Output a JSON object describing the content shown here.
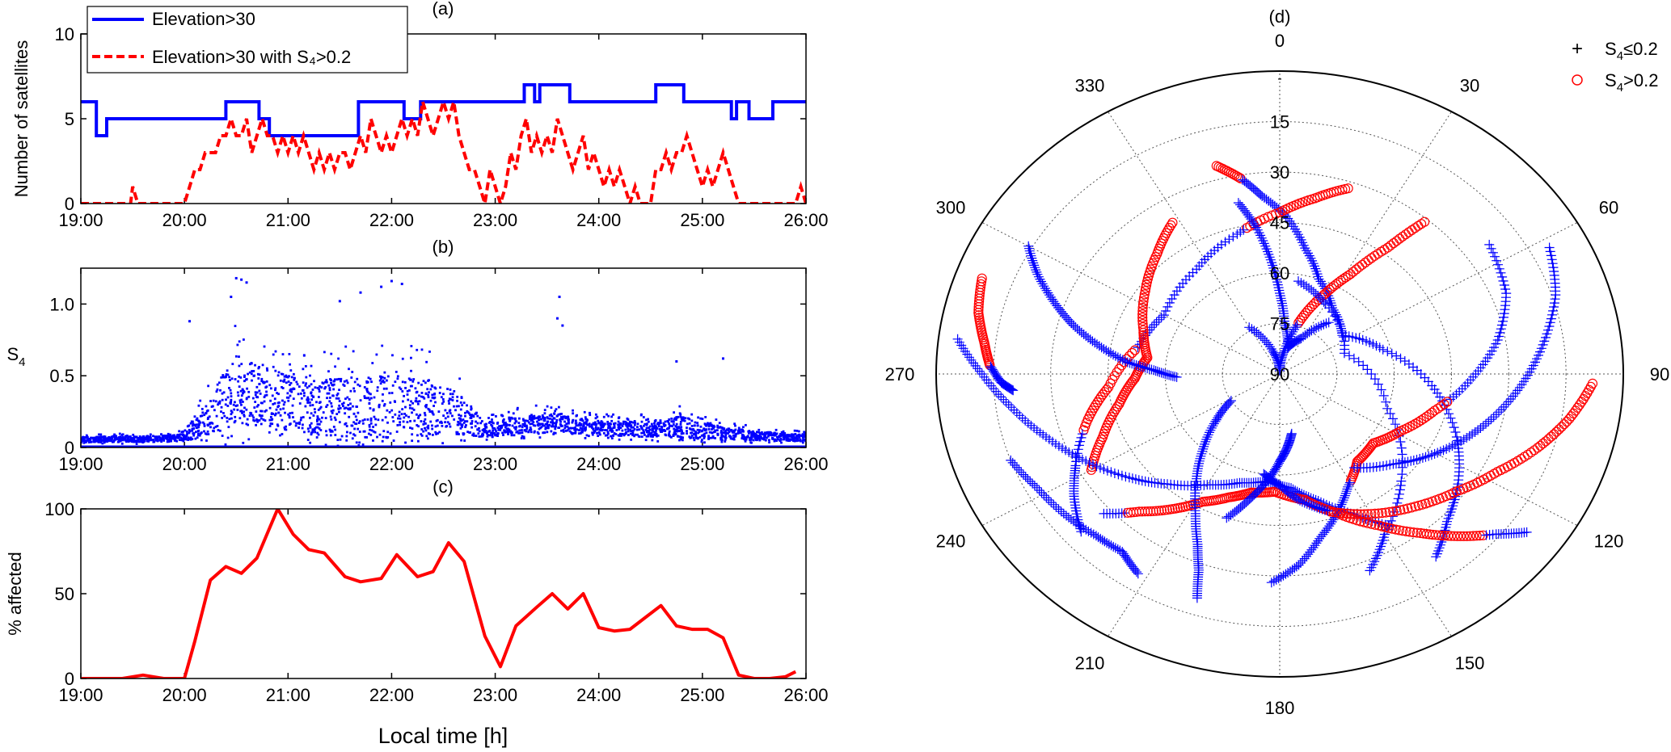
{
  "chart_data": [
    {
      "panel": "a",
      "type": "line",
      "panel_label": "(a)",
      "ylabel": "Number of satellites",
      "ylim": [
        0,
        10
      ],
      "yticks": [
        0,
        5,
        10
      ],
      "xlim": [
        19,
        26
      ],
      "xtick_labels": [
        "19:00",
        "20:00",
        "21:00",
        "22:00",
        "23:00",
        "24:00",
        "25:00",
        "26:00"
      ],
      "legend_position": "top-left",
      "series": [
        {
          "name": "Elevation>30",
          "color": "#0000ff",
          "style": "solid",
          "x": [
            19.0,
            19.15,
            19.15,
            19.25,
            19.25,
            20.4,
            20.4,
            20.72,
            20.72,
            20.82,
            20.82,
            21.68,
            21.68,
            22.12,
            22.12,
            22.28,
            22.28,
            23.28,
            23.28,
            23.38,
            23.38,
            23.43,
            23.43,
            23.72,
            23.72,
            24.55,
            24.55,
            24.82,
            24.82,
            25.28,
            25.28,
            25.33,
            25.33,
            25.45,
            25.45,
            25.68,
            25.68,
            26.0
          ],
          "y": [
            6,
            6,
            4,
            4,
            5,
            5,
            6,
            6,
            5,
            5,
            4,
            4,
            6,
            6,
            5,
            5,
            6,
            6,
            7,
            7,
            6,
            6,
            7,
            7,
            6,
            6,
            7,
            7,
            6,
            6,
            5,
            5,
            6,
            6,
            5,
            5,
            6,
            6
          ]
        },
        {
          "name": "Elevation>30 with S₄>0.2",
          "color": "#ff0000",
          "style": "dashed",
          "x": [
            19.0,
            19.48,
            19.5,
            19.55,
            19.6,
            20.0,
            20.05,
            20.1,
            20.15,
            20.2,
            20.25,
            20.3,
            20.35,
            20.4,
            20.45,
            20.5,
            20.55,
            20.6,
            20.65,
            20.7,
            20.75,
            20.8,
            20.85,
            20.9,
            20.95,
            21.0,
            21.05,
            21.1,
            21.15,
            21.2,
            21.25,
            21.3,
            21.35,
            21.4,
            21.45,
            21.5,
            21.55,
            21.6,
            21.65,
            21.7,
            21.75,
            21.8,
            21.85,
            21.9,
            21.95,
            22.0,
            22.05,
            22.1,
            22.15,
            22.2,
            22.25,
            22.3,
            22.35,
            22.4,
            22.45,
            22.5,
            22.55,
            22.6,
            22.65,
            22.7,
            22.75,
            22.8,
            22.85,
            22.9,
            22.95,
            23.0,
            23.05,
            23.1,
            23.15,
            23.2,
            23.25,
            23.3,
            23.35,
            23.4,
            23.45,
            23.5,
            23.55,
            23.6,
            23.65,
            23.7,
            23.75,
            23.8,
            23.85,
            23.9,
            23.95,
            24.0,
            24.05,
            24.1,
            24.15,
            24.2,
            24.25,
            24.3,
            24.35,
            24.4,
            24.45,
            24.5,
            24.55,
            24.6,
            24.65,
            24.7,
            24.75,
            24.8,
            24.85,
            24.9,
            24.95,
            25.0,
            25.05,
            25.1,
            25.15,
            25.2,
            25.25,
            25.3,
            25.35,
            25.9,
            25.95,
            26.0
          ],
          "y": [
            0,
            0,
            1,
            0,
            0,
            0,
            1,
            2,
            2,
            3,
            3,
            3,
            4,
            4,
            5,
            4,
            4,
            5,
            3,
            4,
            5,
            4,
            4,
            3,
            4,
            3,
            4,
            3,
            4,
            3,
            2,
            3,
            2,
            3,
            2,
            3,
            3,
            2,
            3,
            4,
            3,
            5,
            4,
            3,
            4,
            3,
            4,
            5,
            4,
            5,
            4,
            6,
            5,
            4,
            5,
            6,
            5,
            6,
            4,
            3,
            2,
            2,
            1,
            0,
            2,
            1,
            0,
            1,
            3,
            2,
            4,
            5,
            3,
            4,
            3,
            4,
            3,
            5,
            4,
            3,
            2,
            3,
            4,
            2,
            3,
            2,
            1,
            2,
            1,
            2,
            1,
            0,
            1,
            0,
            0,
            0,
            2,
            2,
            3,
            2,
            3,
            3,
            4,
            3,
            2,
            1,
            2,
            1,
            2,
            3,
            2,
            1,
            0,
            0,
            1,
            0
          ]
        }
      ]
    },
    {
      "panel": "b",
      "type": "scatter",
      "panel_label": "(b)",
      "ylabel_main": "S",
      "ylabel_sub": "4",
      "ylim": [
        0,
        1.25
      ],
      "yticks": [
        0,
        0.5,
        1.0
      ],
      "ytick_labels": [
        "0",
        "0.5",
        "1.0"
      ],
      "xlim": [
        19,
        26
      ],
      "xtick_labels": [
        "19:00",
        "20:00",
        "21:00",
        "22:00",
        "23:00",
        "24:00",
        "25:00",
        "26:00"
      ],
      "color": "#0000ff",
      "envelope": {
        "x": [
          19.0,
          19.5,
          20.0,
          20.1,
          20.3,
          20.5,
          20.7,
          21.0,
          21.3,
          21.6,
          22.0,
          22.3,
          22.6,
          22.8,
          22.9,
          23.2,
          23.5,
          23.6,
          23.7,
          24.0,
          24.5,
          24.8,
          25.0,
          25.3,
          25.6,
          26.0
        ],
        "center": [
          0.05,
          0.05,
          0.06,
          0.1,
          0.22,
          0.32,
          0.3,
          0.25,
          0.22,
          0.22,
          0.22,
          0.22,
          0.2,
          0.14,
          0.1,
          0.14,
          0.15,
          0.17,
          0.14,
          0.12,
          0.11,
          0.12,
          0.1,
          0.08,
          0.07,
          0.06
        ],
        "spread": [
          0.04,
          0.04,
          0.05,
          0.12,
          0.32,
          0.5,
          0.45,
          0.4,
          0.38,
          0.42,
          0.45,
          0.42,
          0.3,
          0.2,
          0.1,
          0.12,
          0.14,
          0.12,
          0.12,
          0.1,
          0.11,
          0.15,
          0.12,
          0.08,
          0.06,
          0.05
        ]
      },
      "outliers": [
        [
          20.5,
          1.18
        ],
        [
          20.55,
          1.17
        ],
        [
          22.0,
          1.16
        ],
        [
          21.9,
          1.12
        ],
        [
          22.1,
          1.14
        ],
        [
          23.62,
          1.05
        ],
        [
          21.7,
          1.08
        ],
        [
          21.5,
          1.02
        ],
        [
          20.45,
          1.05
        ],
        [
          20.6,
          1.15
        ],
        [
          23.65,
          0.85
        ],
        [
          24.75,
          0.6
        ],
        [
          25.2,
          0.62
        ],
        [
          20.05,
          0.88
        ],
        [
          23.6,
          0.9
        ]
      ]
    },
    {
      "panel": "c",
      "type": "line",
      "panel_label": "(c)",
      "ylabel": "% affected",
      "xlabel": "Local time [h]",
      "ylim": [
        0,
        100
      ],
      "yticks": [
        0,
        50,
        100
      ],
      "xlim": [
        19,
        26
      ],
      "xtick_labels": [
        "19:00",
        "20:00",
        "21:00",
        "22:00",
        "23:00",
        "24:00",
        "25:00",
        "26:00"
      ],
      "series": [
        {
          "color": "#ff0000",
          "x": [
            19.0,
            19.2,
            19.4,
            19.6,
            19.8,
            20.0,
            20.1,
            20.25,
            20.4,
            20.55,
            20.7,
            20.9,
            21.05,
            21.2,
            21.35,
            21.55,
            21.7,
            21.9,
            22.05,
            22.25,
            22.4,
            22.55,
            22.7,
            22.9,
            23.05,
            23.2,
            23.4,
            23.55,
            23.7,
            23.85,
            24.0,
            24.15,
            24.3,
            24.45,
            24.6,
            24.75,
            24.9,
            25.05,
            25.2,
            25.35,
            25.5,
            25.65,
            25.8,
            25.9
          ],
          "y": [
            0,
            0,
            0,
            2,
            0,
            0,
            22,
            58,
            66,
            62,
            71,
            100,
            85,
            76,
            74,
            60,
            57,
            59,
            73,
            60,
            63,
            80,
            69,
            25,
            7,
            31,
            42,
            50,
            41,
            50,
            30,
            28,
            29,
            36,
            43,
            31,
            29,
            29,
            24,
            2,
            0,
            0,
            1,
            4
          ]
        }
      ]
    },
    {
      "panel": "d",
      "type": "scatter",
      "subtype": "polar (azimuth / elevation skyplot)",
      "panel_label": "(d)",
      "angle_tick_labels": [
        "0",
        "30",
        "60",
        "90",
        "120",
        "150",
        "180",
        "210",
        "240",
        "270",
        "300",
        "330"
      ],
      "radial_tick_labels": [
        "15",
        "30",
        "45",
        "60",
        "75",
        "90"
      ],
      "radial_offset_label": "-",
      "legend_position": "top-right",
      "legend": [
        {
          "label_main": "S",
          "label_sub": "4",
          "label_rest": "≤0.2",
          "marker": "+",
          "color": "#0000ff"
        },
        {
          "label_main": "S",
          "label_sub": "4",
          "label_rest": ">0.2",
          "marker": "o",
          "color": "#ff0000"
        }
      ],
      "tracks": [
        {
          "az": [
            345,
            350,
            355,
            2,
            10,
            20,
            35,
            55,
            75,
            95,
            112,
            125,
            135,
            143
          ],
          "el": [
            26,
            31,
            37,
            43,
            52,
            60,
            66,
            70,
            62,
            50,
            40,
            33,
            28,
            22
          ],
          "high": [
            [
              0.0,
              0.08
            ]
          ]
        },
        {
          "az": [
            18,
            10,
            0,
            345,
            325,
            300,
            282,
            265,
            255,
            243,
            236,
            228
          ],
          "el": [
            32,
            37,
            42,
            47,
            52,
            55,
            52,
            45,
            38,
            30,
            25,
            20
          ],
          "high": [
            [
              0.0,
              0.25
            ],
            [
              0.55,
              0.75
            ]
          ]
        },
        {
          "az": [
            40,
            37,
            32,
            26,
            18,
            10,
            0,
            345,
            330
          ],
          "el": [
            31,
            43,
            55,
            64,
            74,
            83,
            89,
            83,
            74
          ],
          "high": [
            [
              0.0,
              0.5
            ]
          ]
        },
        {
          "az": [
            10,
            30,
            70,
            110,
            135,
            150,
            158
          ],
          "el": [
            62,
            66,
            72,
            60,
            45,
            35,
            27
          ],
          "high": []
        },
        {
          "az": [
            348,
            352,
            356,
            0,
            5,
            15,
            28,
            40
          ],
          "el": [
            38,
            46,
            56,
            66,
            75,
            82,
            78,
            70
          ],
          "high": []
        },
        {
          "az": [
            328,
            318,
            305,
            290,
            278,
            268,
            258,
            248,
            240
          ],
          "el": [
            37,
            42,
            47,
            52,
            55,
            52,
            47,
            40,
            33
          ],
          "high": [
            [
              0.0,
              1.0
            ]
          ]
        },
        {
          "az": [
            300,
            295,
            290,
            285,
            280,
            275,
            272,
            268
          ],
          "el": [
            14,
            20,
            27,
            34,
            42,
            50,
            57,
            63
          ],
          "high": []
        },
        {
          "az": [
            290,
            283,
            277,
            272,
            268,
            266
          ],
          "el": [
            7,
            9,
            12,
            14,
            17,
            20
          ],
          "high": [
            [
              0.0,
              0.6
            ]
          ]
        },
        {
          "az": [
            277,
            270,
            262,
            253,
            243,
            232,
            222,
            210,
            198,
            186,
            175,
            165,
            155,
            147
          ],
          "el": [
            5,
            12,
            19,
            26,
            33,
            40,
            46,
            52,
            56,
            58,
            56,
            51,
            44,
            36
          ],
          "high": []
        },
        {
          "az": [
            250,
            242,
            233,
            225,
            218,
            212
          ],
          "el": [
            15,
            18,
            20,
            22,
            23,
            20
          ],
          "high": []
        },
        {
          "az": [
            228,
            222,
            215,
            208,
            200,
            192,
            182,
            170,
            160,
            150,
            142,
            136,
            130,
            126
          ],
          "el": [
            28,
            35,
            41,
            47,
            51,
            54,
            55,
            52,
            46,
            38,
            30,
            23,
            16,
            10
          ],
          "high": [
            [
              0.05,
              0.9
            ]
          ]
        },
        {
          "az": [
            198,
            200,
            203,
            208,
            215,
            222,
            230,
            238
          ],
          "el": [
            20,
            28,
            35,
            43,
            52,
            60,
            68,
            75
          ],
          "high": []
        },
        {
          "az": [
            55,
            68,
            80,
            92,
            105,
            118,
            130,
            142,
            152,
            160,
            168,
            175,
            182
          ],
          "el": [
            23,
            26,
            32,
            40,
            48,
            54,
            58,
            57,
            52,
            46,
            40,
            33,
            28
          ],
          "high": [
            [
              0.3,
              0.65
            ]
          ]
        },
        {
          "az": [
            62,
            72,
            82,
            92,
            102,
            112,
            122,
            132,
            145
          ],
          "el": [
            10,
            14,
            20,
            26,
            32,
            38,
            44,
            50,
            56
          ],
          "high": []
        },
        {
          "az": [
            92,
            100,
            108,
            117,
            127,
            138,
            150,
            162,
            172,
            180,
            188
          ],
          "el": [
            8,
            13,
            19,
            26,
            32,
            37,
            42,
            47,
            52,
            57,
            60
          ],
          "high": [
            [
              0.0,
              0.7
            ]
          ]
        },
        {
          "az": [
            170,
            175,
            180,
            186,
            192,
            198
          ],
          "el": [
            72,
            68,
            64,
            58,
            52,
            45
          ],
          "high": []
        }
      ]
    }
  ]
}
